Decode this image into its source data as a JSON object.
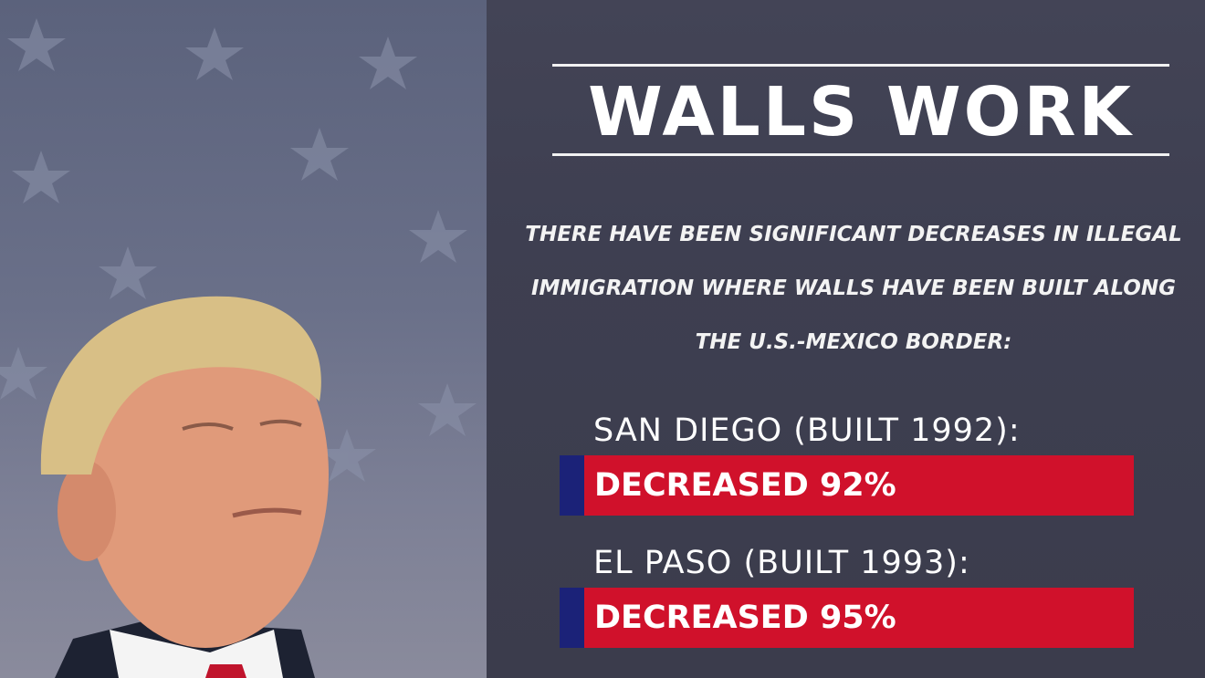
{
  "title": "WALLS WORK",
  "intro": "THERE HAVE BEEN SIGNIFICANT DECREASES IN ILLEGAL IMMIGRATION WHERE WALLS HAVE BEEN BUILT ALONG THE U.S.-MEXICO BORDER:",
  "stats": [
    {
      "label": "SAN DIEGO (BUILT 1992):",
      "result": "DECREASED 92%"
    },
    {
      "label": "EL PASO (BUILT 1993):",
      "result": "DECREASED 95%"
    }
  ],
  "colors": {
    "bar_red": "#d0112b",
    "bar_blue": "#1b2278",
    "background": "#3d3f50"
  }
}
